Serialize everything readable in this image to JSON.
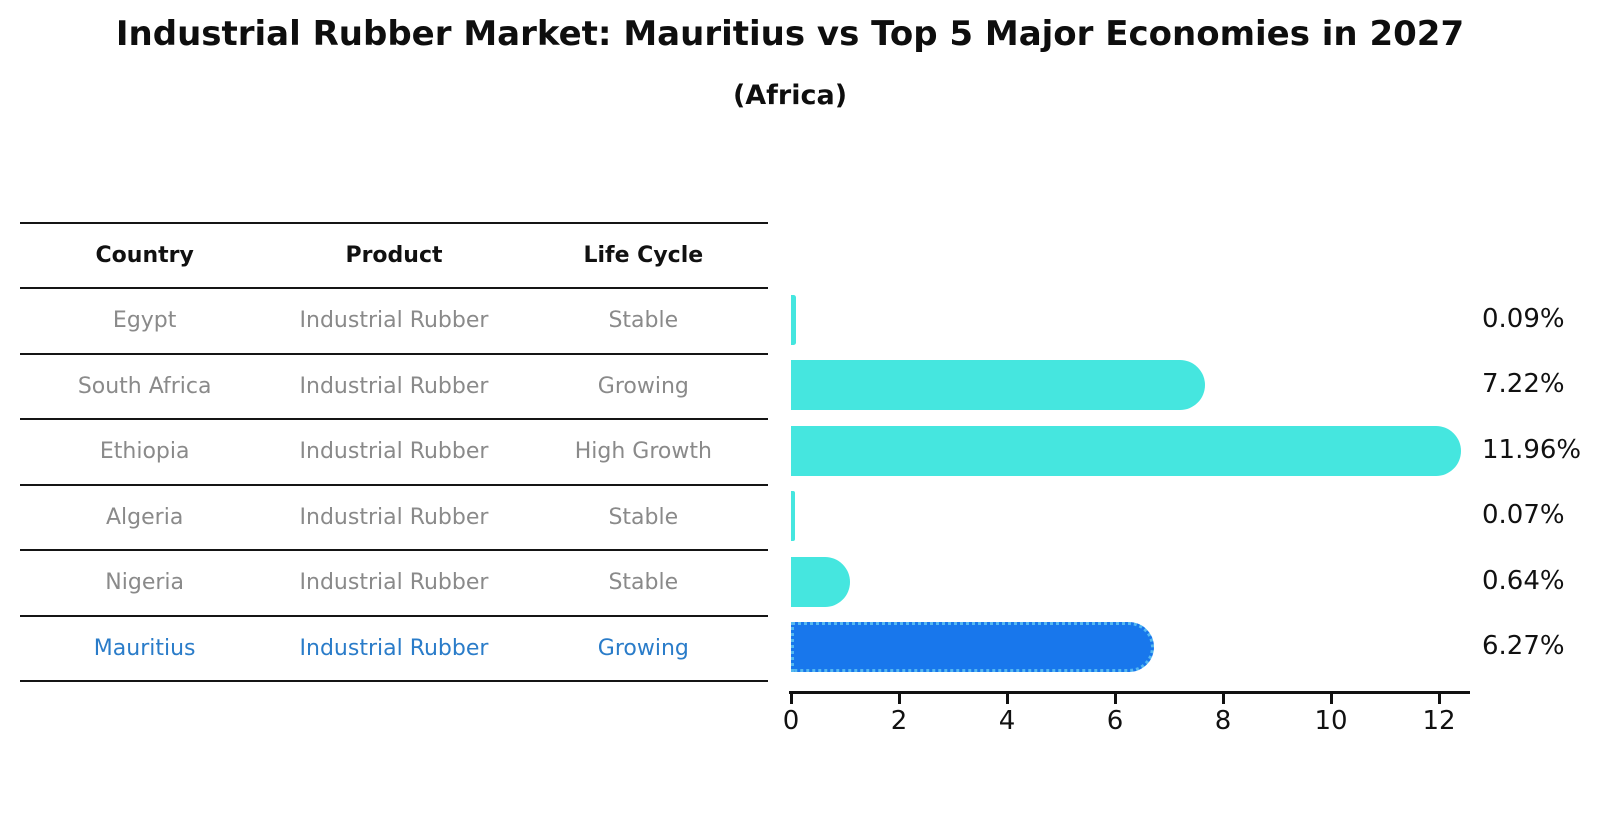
{
  "title": "Industrial Rubber Market: Mauritius vs Top 5 Major Economies in 2027",
  "subtitle": "(Africa)",
  "table": {
    "headers": [
      "Country",
      "Product",
      "Life Cycle"
    ],
    "rows": [
      {
        "country": "Egypt",
        "product": "Industrial Rubber",
        "life_cycle": "Stable",
        "highlight": false
      },
      {
        "country": "South Africa",
        "product": "Industrial Rubber",
        "life_cycle": "Growing",
        "highlight": false
      },
      {
        "country": "Ethiopia",
        "product": "Industrial Rubber",
        "life_cycle": "High Growth",
        "highlight": false
      },
      {
        "country": "Algeria",
        "product": "Industrial Rubber",
        "life_cycle": "Stable",
        "highlight": false
      },
      {
        "country": "Nigeria",
        "product": "Industrial Rubber",
        "life_cycle": "Stable",
        "highlight": false
      },
      {
        "country": "Mauritius",
        "product": "Industrial Rubber",
        "life_cycle": "Growing",
        "highlight": true
      }
    ]
  },
  "chart_data": {
    "type": "bar",
    "orientation": "horizontal",
    "title": "Industrial Rubber Market: Mauritius vs Top 5 Major Economies in 2027",
    "subtitle": "(Africa)",
    "categories": [
      "Egypt",
      "South Africa",
      "Ethiopia",
      "Algeria",
      "Nigeria",
      "Mauritius"
    ],
    "values": [
      0.09,
      7.22,
      11.96,
      0.07,
      0.64,
      6.27
    ],
    "value_labels": [
      "0.09%",
      "7.22%",
      "11.96%",
      "0.07%",
      "0.64%",
      "6.27%"
    ],
    "x_ticks": [
      0,
      2,
      4,
      6,
      8,
      10,
      12
    ],
    "xlim": [
      0,
      12.6
    ],
    "grid": false,
    "legend": "none",
    "highlight_index": 5,
    "bar_color": "#45e6df",
    "highlight_bar_color": "#1877ec",
    "highlight_border_color": "#55b8f0"
  },
  "colors": {
    "row_text": "#8a8a8a",
    "highlight_text": "#2a7cc9",
    "header_text": "#111111",
    "axis": "#111111"
  }
}
